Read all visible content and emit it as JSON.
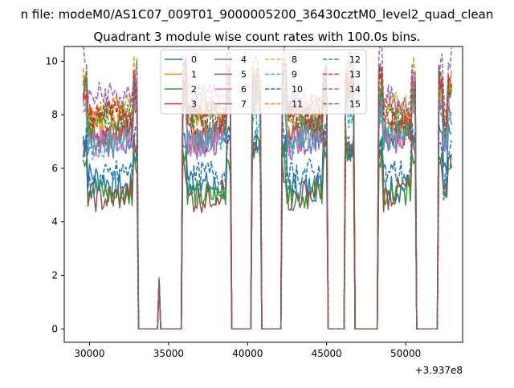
{
  "figure": {
    "suptitle": "n file: modeM0/AS1C07_009T01_9000005200_36430cztM0_level2_quad_clean",
    "offset_label": "+3.937e8"
  },
  "chart_data": {
    "type": "line",
    "title": "Quadrant 3 module wise count rates with 100.0s bins.",
    "xlabel": "",
    "ylabel": "",
    "xlim": [
      28400,
      53600
    ],
    "ylim": [
      -0.5,
      10.55
    ],
    "xticks": [
      30000,
      35000,
      40000,
      45000,
      50000
    ],
    "xtick_labels": [
      "30000",
      "35000",
      "40000",
      "45000",
      "50000"
    ],
    "yticks": [
      0,
      2,
      4,
      6,
      8,
      10
    ],
    "ytick_labels": [
      "0",
      "2",
      "4",
      "6",
      "8",
      "10"
    ],
    "x_offset": 393700000,
    "bin_seconds": 100,
    "grid": false,
    "legend_position": "upper center",
    "legend_columns": 4,
    "active_windows": [
      [
        29600,
        33000
      ],
      [
        35900,
        38900
      ],
      [
        40300,
        40800
      ],
      [
        42200,
        45000
      ],
      [
        46200,
        46700
      ],
      [
        48300,
        50600
      ],
      [
        52100,
        52900
      ]
    ],
    "spikes": [
      [
        34400,
        1.95
      ]
    ],
    "series": [
      {
        "name": "0",
        "color": "#1f77b4",
        "linestyle": "solid",
        "base_level": 5.5
      },
      {
        "name": "1",
        "color": "#ff7f0e",
        "linestyle": "solid",
        "base_level": 7.6
      },
      {
        "name": "2",
        "color": "#2ca02c",
        "linestyle": "solid",
        "base_level": 5.2
      },
      {
        "name": "3",
        "color": "#d62728",
        "linestyle": "solid",
        "base_level": 7.4
      },
      {
        "name": "4",
        "color": "#9467bd",
        "linestyle": "solid",
        "base_level": 7.1
      },
      {
        "name": "5",
        "color": "#8c564b",
        "linestyle": "solid",
        "base_level": 5.1
      },
      {
        "name": "6",
        "color": "#e377c2",
        "linestyle": "solid",
        "base_level": 7.2
      },
      {
        "name": "7",
        "color": "#7f7f7f",
        "linestyle": "solid",
        "base_level": 7.3
      },
      {
        "name": "8",
        "color": "#bcbd22",
        "linestyle": "dashed",
        "base_level": 8.1
      },
      {
        "name": "9",
        "color": "#17becf",
        "linestyle": "dashed",
        "base_level": 7.0
      },
      {
        "name": "10",
        "color": "#1f77b4",
        "linestyle": "dashed",
        "base_level": 5.6
      },
      {
        "name": "11",
        "color": "#ff7f0e",
        "linestyle": "dashed",
        "base_level": 8.0
      },
      {
        "name": "12",
        "color": "#2ca02c",
        "linestyle": "dashed",
        "base_level": 7.7
      },
      {
        "name": "13",
        "color": "#d62728",
        "linestyle": "dashed",
        "base_level": 7.9
      },
      {
        "name": "14",
        "color": "#9467bd",
        "linestyle": "dashed",
        "base_level": 8.5
      },
      {
        "name": "15",
        "color": "#8c564b",
        "linestyle": "dashed",
        "base_level": 7.8
      }
    ]
  }
}
